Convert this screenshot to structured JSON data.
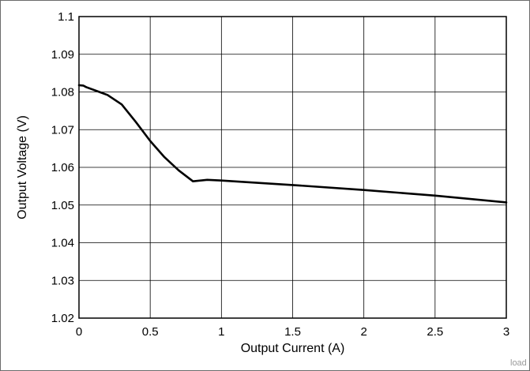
{
  "chart_data": {
    "type": "line",
    "title": "",
    "xlabel": "Output Current (A)",
    "ylabel": "Output Voltage (V)",
    "xlim": [
      0,
      3
    ],
    "ylim": [
      1.02,
      1.1
    ],
    "xticks": [
      "0",
      "0.5",
      "1",
      "1.5",
      "2",
      "2.5",
      "3"
    ],
    "yticks": [
      "1.02",
      "1.03",
      "1.04",
      "1.05",
      "1.06",
      "1.07",
      "1.08",
      "1.09",
      "1.1"
    ],
    "grid": true,
    "series": [
      {
        "x": [
          0,
          0.03,
          0.05,
          0.2,
          0.3,
          0.4,
          0.5,
          0.6,
          0.7,
          0.8,
          0.9,
          1.0,
          1.5,
          2.0,
          2.5,
          3.0
        ],
        "y": [
          1.0818,
          1.0817,
          1.0813,
          1.0792,
          1.0767,
          1.072,
          1.067,
          1.0627,
          1.0592,
          1.0563,
          1.0567,
          1.0565,
          1.0553,
          1.054,
          1.0525,
          1.0507
        ],
        "color": "#000000"
      }
    ],
    "watermark": "load"
  }
}
